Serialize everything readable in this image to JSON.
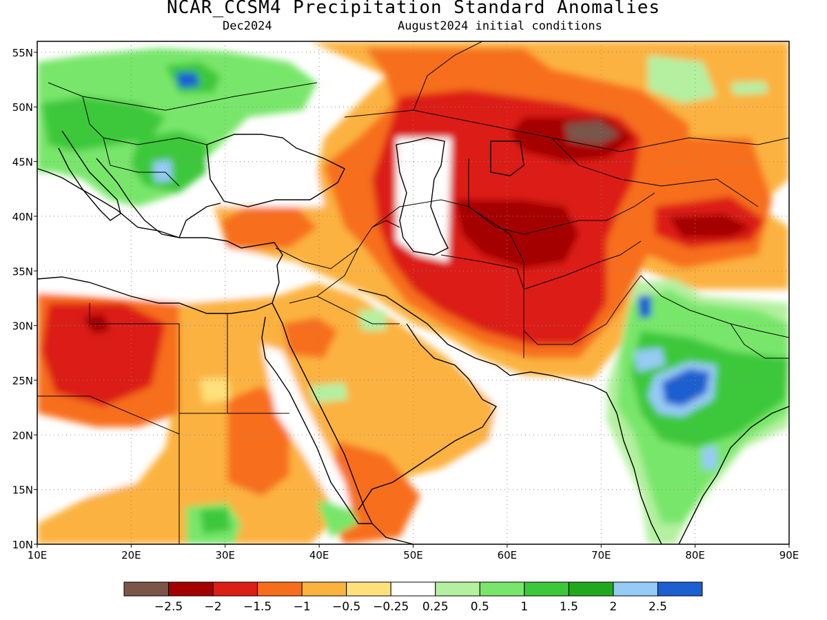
{
  "header": {
    "title": "NCAR_CCSM4 Precipitation Standard Anomalies",
    "subtitle_left": "Dec2024",
    "subtitle_right": "August2024 initial conditions"
  },
  "map": {
    "lon_range": [
      10,
      90
    ],
    "lat_range": [
      10,
      56
    ],
    "lon_ticks": [
      "10E",
      "20E",
      "30E",
      "40E",
      "50E",
      "60E",
      "70E",
      "80E",
      "90E"
    ],
    "lat_ticks": [
      "10N",
      "15N",
      "20N",
      "25N",
      "30N",
      "35N",
      "40N",
      "45N",
      "50N",
      "55N"
    ],
    "gridlines": "dotted"
  },
  "legend": {
    "colors": [
      "#7a5548",
      "#a50000",
      "#dc1e14",
      "#f76e1a",
      "#fbb23f",
      "#ffe07a",
      "#ffffff",
      "#b4f0a0",
      "#78e66a",
      "#3cc83a",
      "#22a81e",
      "#96cbf5",
      "#1c5fd0"
    ],
    "labels": [
      "-2.5",
      "-2",
      "-1.5",
      "-1",
      "-0.5",
      "-0.25",
      "0.25",
      "0.5",
      "1",
      "1.5",
      "2",
      "2.5"
    ]
  }
}
